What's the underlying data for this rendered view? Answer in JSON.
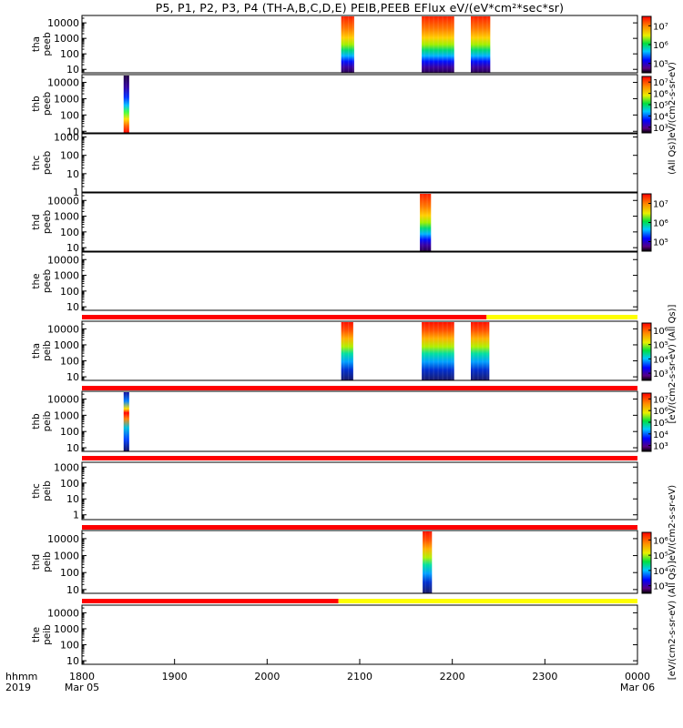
{
  "title": "P5, P1, P2, P3, P4 (TH-A,B,C,D,E) PEIB,PEEB EFlux eV/(eV*cm²*sec*sr)",
  "colors": {
    "mode_red": "#ff0000",
    "mode_yellow": "#ffff00",
    "frame": "#000000"
  },
  "time_axis": {
    "label_line1": "hhmm",
    "label_line2": "2019",
    "ticks": [
      {
        "t": 1800,
        "label": "1800",
        "sub": "Mar 05"
      },
      {
        "t": 1900,
        "label": "1900",
        "sub": ""
      },
      {
        "t": 2000,
        "label": "2000",
        "sub": ""
      },
      {
        "t": 2100,
        "label": "2100",
        "sub": ""
      },
      {
        "t": 2200,
        "label": "2200",
        "sub": ""
      },
      {
        "t": 2300,
        "label": "2300",
        "sub": ""
      },
      {
        "t": 2400,
        "label": "0000",
        "sub": "Mar 06"
      }
    ]
  },
  "colorbar_labels": [
    "(All Qs)]eV/(cm2-s-sr-eV)",
    "[eV/(cm2-s-sr-eV) (All Qs)]",
    "[eV/(cm2-s-sr-eV) (All Qs)]eV/(cm2-s-sr-eV)"
  ],
  "chart_data": {
    "type": "heatmap",
    "x_range": [
      1800,
      2400
    ],
    "x_unit": "hhmm",
    "panels": [
      {
        "probe": "tha",
        "product": "peeb",
        "ylabel": "tha\npeeb",
        "ylim": [
          6,
          30000
        ],
        "yticks": [
          10,
          100,
          1000,
          10000
        ],
        "intervals": [
          [
            2080,
            2094
          ],
          [
            2167,
            2202
          ],
          [
            2220,
            2241
          ]
        ],
        "colorbar": {
          "ticks": [
            "10⁵",
            "10⁶",
            "10⁷"
          ]
        }
      },
      {
        "probe": "thb",
        "product": "peeb",
        "ylabel": "thb\npeeb",
        "ylim": [
          8,
          30000
        ],
        "yticks": [
          10,
          100,
          1000,
          10000
        ],
        "intervals": [
          [
            1845,
            1851
          ]
        ],
        "colorbar": {
          "ticks": [
            "10³",
            "10⁴",
            "10⁵",
            "10⁶",
            "10⁷"
          ]
        }
      },
      {
        "probe": "thc",
        "product": "peeb",
        "ylabel": "thc\npeeb",
        "ylim": [
          1,
          1500
        ],
        "yticks": [
          1,
          10,
          100,
          1000
        ],
        "intervals": [],
        "colorbar": null
      },
      {
        "probe": "thd",
        "product": "peeb",
        "ylabel": "thd\npeeb",
        "ylim": [
          6,
          30000
        ],
        "yticks": [
          10,
          100,
          1000,
          10000
        ],
        "intervals": [
          [
            2165,
            2177
          ]
        ],
        "colorbar": {
          "ticks": [
            "10⁵",
            "10⁶",
            "10⁷"
          ]
        }
      },
      {
        "probe": "the",
        "product": "peeb",
        "ylabel": "the\npeeb",
        "ylim": [
          6,
          30000
        ],
        "yticks": [
          10,
          100,
          1000,
          10000
        ],
        "intervals": [],
        "colorbar": null
      },
      {
        "probe": "tha",
        "product": "peib",
        "ylabel": "tha\npeib",
        "ylim": [
          6,
          30000
        ],
        "yticks": [
          10,
          100,
          1000,
          10000
        ],
        "intervals": [
          [
            2080,
            2093
          ],
          [
            2167,
            2202
          ],
          [
            2220,
            2240
          ]
        ],
        "colorbar": {
          "ticks": [
            "10³",
            "10⁴",
            "10⁵",
            "10⁶"
          ]
        }
      },
      {
        "probe": "thb",
        "product": "peib",
        "ylabel": "thb\npeib",
        "ylim": [
          6,
          30000
        ],
        "yticks": [
          10,
          100,
          1000,
          10000
        ],
        "intervals": [
          [
            1845,
            1851
          ]
        ],
        "colorbar": {
          "ticks": [
            "10³",
            "10⁴",
            "10⁵",
            "10⁶",
            "10⁷"
          ]
        }
      },
      {
        "probe": "thc",
        "product": "peib",
        "ylabel": "thc\npeib",
        "ylim": [
          0.5,
          2000
        ],
        "yticks": [
          1,
          10,
          100,
          1000
        ],
        "intervals": [],
        "colorbar": null
      },
      {
        "probe": "thd",
        "product": "peib",
        "ylabel": "thd\npeib",
        "ylim": [
          6,
          30000
        ],
        "yticks": [
          10,
          100,
          1000,
          10000
        ],
        "intervals": [
          [
            2168,
            2178
          ]
        ],
        "colorbar": {
          "ticks": [
            "10³",
            "10⁴",
            "10⁵",
            "10⁶"
          ]
        }
      },
      {
        "probe": "the",
        "product": "peib",
        "ylabel": "the\npeib",
        "ylim": [
          6,
          30000
        ],
        "yticks": [
          10,
          100,
          1000,
          10000
        ],
        "intervals": [],
        "colorbar": null
      }
    ],
    "mode_bars": [
      {
        "segments": [
          {
            "start": 1800,
            "end": 2237,
            "color": "red"
          },
          {
            "start": 2237,
            "end": 2400,
            "color": "yellow"
          }
        ]
      },
      {
        "segments": [
          {
            "start": 1800,
            "end": 2400,
            "color": "red"
          }
        ]
      },
      {
        "segments": [
          {
            "start": 1800,
            "end": 2400,
            "color": "red"
          }
        ]
      },
      {
        "segments": [
          {
            "start": 1800,
            "end": 2400,
            "color": "red"
          }
        ]
      },
      {
        "segments": [
          {
            "start": 1800,
            "end": 2077,
            "color": "red"
          },
          {
            "start": 2077,
            "end": 2400,
            "color": "yellow"
          }
        ]
      }
    ]
  }
}
